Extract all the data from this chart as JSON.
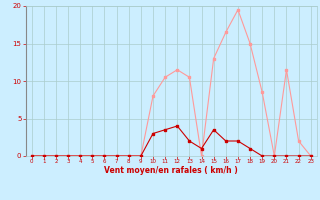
{
  "title": "",
  "xlabel": "Vent moyen/en rafales ( km/h )",
  "ylabel": "",
  "x_values": [
    0,
    1,
    2,
    3,
    4,
    5,
    6,
    7,
    8,
    9,
    10,
    11,
    12,
    13,
    14,
    15,
    16,
    17,
    18,
    19,
    20,
    21,
    22,
    23
  ],
  "y_moyen": [
    0,
    0,
    0,
    0,
    0,
    0,
    0,
    0,
    0,
    0,
    3,
    3.5,
    4,
    2,
    1,
    3.5,
    2,
    2,
    1,
    0,
    0,
    0,
    0,
    0
  ],
  "y_rafales": [
    0,
    0,
    0,
    0,
    0,
    0,
    0,
    0,
    0,
    0,
    8,
    10.5,
    11.5,
    10.5,
    0,
    13,
    16.5,
    19.5,
    15,
    8.5,
    0,
    11.5,
    2,
    0
  ],
  "line_color_moyen": "#cc0000",
  "line_color_rafales": "#ff9999",
  "bg_color": "#cceeff",
  "grid_color": "#aacccc",
  "axis_color": "#cc0000",
  "ylim": [
    0,
    20
  ],
  "xlim": [
    -0.5,
    23.5
  ],
  "yticks": [
    0,
    5,
    10,
    15,
    20
  ],
  "xticks": [
    0,
    1,
    2,
    3,
    4,
    5,
    6,
    7,
    8,
    9,
    10,
    11,
    12,
    13,
    14,
    15,
    16,
    17,
    18,
    19,
    20,
    21,
    22,
    23
  ]
}
